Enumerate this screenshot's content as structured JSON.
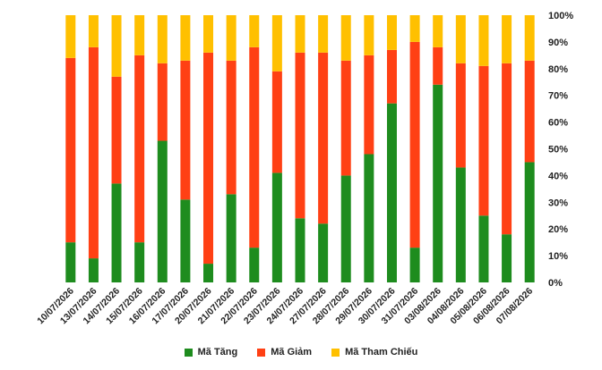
{
  "chart_data": {
    "type": "bar",
    "stacked": true,
    "categories": [
      "10/07/2026",
      "13/07/2026",
      "14/07/2026",
      "15/07/2026",
      "16/07/2026",
      "17/07/2026",
      "20/07/2026",
      "21/07/2026",
      "22/07/2026",
      "23/07/2026",
      "24/07/2026",
      "27/07/2026",
      "28/07/2026",
      "29/07/2026",
      "30/07/2026",
      "31/07/2026",
      "03/08/2026",
      "04/08/2026",
      "05/08/2026",
      "06/08/2026",
      "07/08/2026"
    ],
    "series": [
      {
        "name": "Mã Tăng",
        "color": "#1e8c1e",
        "values": [
          15,
          9,
          37,
          15,
          53,
          31,
          7,
          33,
          13,
          41,
          24,
          22,
          40,
          48,
          67,
          13,
          74,
          43,
          25,
          18,
          45
        ]
      },
      {
        "name": "Mã Giảm",
        "color": "#ff4014",
        "values": [
          69,
          79,
          40,
          70,
          29,
          52,
          79,
          50,
          75,
          38,
          62,
          64,
          43,
          37,
          20,
          77,
          14,
          39,
          56,
          64,
          38
        ]
      },
      {
        "name": "Mã Tham Chiếu",
        "color": "#ffc000",
        "values": [
          16,
          12,
          23,
          15,
          18,
          17,
          14,
          17,
          12,
          21,
          14,
          14,
          17,
          15,
          13,
          10,
          12,
          18,
          19,
          18,
          17
        ]
      }
    ],
    "y_ticks": [
      "0%",
      "10%",
      "20%",
      "30%",
      "40%",
      "50%",
      "60%",
      "70%",
      "80%",
      "90%",
      "100%"
    ],
    "ylim": [
      0,
      100
    ],
    "y_axis_position": "right",
    "grid": false,
    "legend_position": "bottom",
    "title": "",
    "xlabel": "",
    "ylabel": ""
  }
}
